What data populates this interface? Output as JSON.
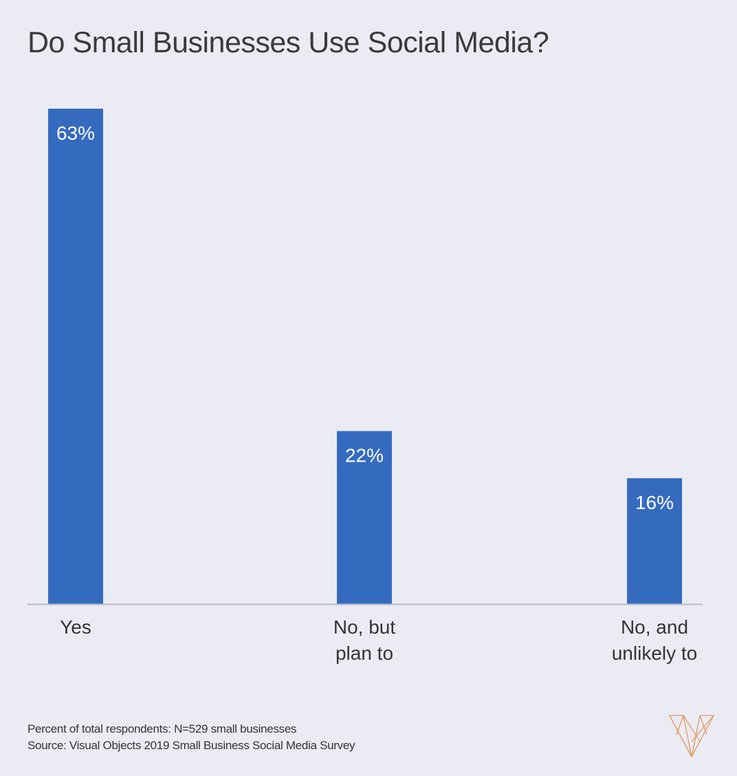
{
  "chart_data": {
    "type": "bar",
    "title": "Do Small Businesses Use Social Media?",
    "categories": [
      [
        "Yes"
      ],
      [
        "No, but",
        "plan to"
      ],
      [
        "No, and",
        "unlikely to"
      ]
    ],
    "values": [
      63,
      22,
      16
    ],
    "data_labels": [
      "63%",
      "22%",
      "16%"
    ],
    "xlabel": "",
    "ylabel": "",
    "ylim": [
      0,
      63
    ],
    "grid": false,
    "bar_color": "#356bbf",
    "background": "#ebebf4"
  },
  "footnote": {
    "note": "Percent of total respondents: N=529 small businesses",
    "source": "Source: Visual Objects 2019 Small Business Social Media Survey"
  },
  "logo": {
    "name": "visual-objects-logo",
    "color": "#e0995e"
  }
}
